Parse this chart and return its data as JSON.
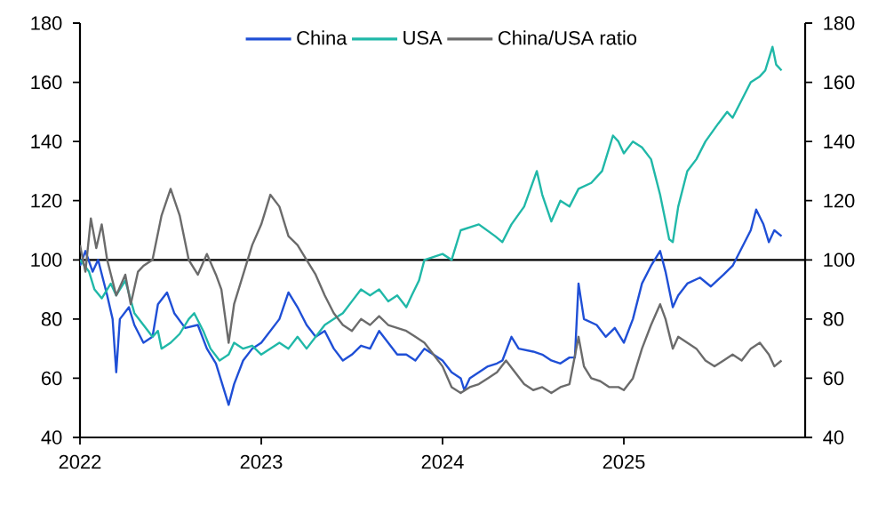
{
  "chart_data": {
    "type": "line",
    "xlim": [
      2022,
      2026
    ],
    "xticks": [
      2022,
      2023,
      2024,
      2025
    ],
    "ylim": [
      40,
      180
    ],
    "yticks": [
      40,
      60,
      80,
      100,
      120,
      140,
      160,
      180
    ],
    "y2lim": [
      40,
      180
    ],
    "y2ticks": [
      40,
      60,
      80,
      100,
      120,
      140,
      160,
      180
    ],
    "legend": "top",
    "grid": false,
    "line_style": "solid",
    "ref_lines": [
      {
        "axis": "y",
        "value": 100,
        "color": "#000000"
      }
    ],
    "series": [
      {
        "name": "China",
        "color": "#1f4fd6",
        "x": [
          2022.0,
          2022.03,
          2022.07,
          2022.1,
          2022.15,
          2022.18,
          2022.2,
          2022.22,
          2022.27,
          2022.3,
          2022.35,
          2022.4,
          2022.43,
          2022.48,
          2022.52,
          2022.58,
          2022.65,
          2022.7,
          2022.75,
          2022.8,
          2022.82,
          2022.85,
          2022.9,
          2022.95,
          2023.0,
          2023.05,
          2023.1,
          2023.15,
          2023.2,
          2023.25,
          2023.3,
          2023.35,
          2023.4,
          2023.45,
          2023.5,
          2023.55,
          2023.6,
          2023.65,
          2023.7,
          2023.75,
          2023.8,
          2023.85,
          2023.9,
          2023.95,
          2024.0,
          2024.05,
          2024.1,
          2024.12,
          2024.15,
          2024.2,
          2024.25,
          2024.3,
          2024.33,
          2024.38,
          2024.42,
          2024.5,
          2024.55,
          2024.6,
          2024.65,
          2024.7,
          2024.73,
          2024.75,
          2024.78,
          2024.85,
          2024.9,
          2024.95,
          2025.0,
          2025.05,
          2025.1,
          2025.15,
          2025.2,
          2025.23,
          2025.27,
          2025.3,
          2025.35,
          2025.42,
          2025.48,
          2025.55,
          2025.6,
          2025.65,
          2025.7,
          2025.73,
          2025.77,
          2025.8,
          2025.83,
          2025.87
        ],
        "values": [
          98,
          103,
          96,
          100,
          88,
          80,
          62,
          80,
          84,
          78,
          72,
          74,
          85,
          89,
          82,
          77,
          78,
          70,
          65,
          55,
          51,
          58,
          66,
          70,
          72,
          76,
          80,
          89,
          84,
          78,
          74,
          76,
          70,
          66,
          68,
          71,
          70,
          76,
          72,
          68,
          68,
          66,
          70,
          68,
          66,
          62,
          60,
          56,
          60,
          62,
          64,
          65,
          66,
          74,
          70,
          69,
          68,
          66,
          65,
          67,
          67,
          92,
          80,
          78,
          74,
          77,
          72,
          80,
          92,
          98,
          103,
          96,
          84,
          88,
          92,
          94,
          91,
          95,
          98,
          104,
          110,
          117,
          112,
          106,
          110,
          108
        ]
      },
      {
        "name": "USA",
        "color": "#20b8a8",
        "x": [
          2022.0,
          2022.05,
          2022.08,
          2022.12,
          2022.17,
          2022.2,
          2022.25,
          2022.3,
          2022.35,
          2022.4,
          2022.43,
          2022.45,
          2022.5,
          2022.55,
          2022.6,
          2022.63,
          2022.68,
          2022.72,
          2022.77,
          2022.82,
          2022.85,
          2022.9,
          2022.95,
          2023.0,
          2023.05,
          2023.1,
          2023.15,
          2023.2,
          2023.25,
          2023.3,
          2023.35,
          2023.4,
          2023.45,
          2023.5,
          2023.55,
          2023.6,
          2023.65,
          2023.7,
          2023.75,
          2023.8,
          2023.83,
          2023.87,
          2023.9,
          2024.0,
          2024.05,
          2024.1,
          2024.2,
          2024.29,
          2024.33,
          2024.38,
          2024.45,
          2024.52,
          2024.55,
          2024.6,
          2024.65,
          2024.7,
          2024.75,
          2024.82,
          2024.88,
          2024.94,
          2024.97,
          2025.0,
          2025.05,
          2025.1,
          2025.15,
          2025.2,
          2025.25,
          2025.27,
          2025.3,
          2025.35,
          2025.4,
          2025.45,
          2025.52,
          2025.57,
          2025.6,
          2025.65,
          2025.7,
          2025.75,
          2025.78,
          2025.82,
          2025.84,
          2025.87
        ],
        "values": [
          100,
          96,
          90,
          87,
          92,
          88,
          93,
          82,
          78,
          74,
          76,
          70,
          72,
          75,
          80,
          82,
          76,
          70,
          66,
          68,
          72,
          70,
          71,
          68,
          70,
          72,
          70,
          74,
          70,
          74,
          78,
          80,
          82,
          86,
          90,
          88,
          90,
          86,
          88,
          84,
          88,
          93,
          100,
          102,
          100,
          110,
          112,
          108,
          106,
          112,
          118,
          130,
          122,
          113,
          120,
          118,
          124,
          126,
          130,
          142,
          140,
          136,
          140,
          138,
          134,
          122,
          107,
          106,
          118,
          130,
          134,
          140,
          146,
          150,
          148,
          154,
          160,
          162,
          164,
          172,
          166,
          164
        ]
      },
      {
        "name": "China/USA ratio",
        "color": "#6b6b6b",
        "x": [
          2022.0,
          2022.03,
          2022.06,
          2022.09,
          2022.12,
          2022.15,
          2022.2,
          2022.25,
          2022.28,
          2022.32,
          2022.35,
          2022.4,
          2022.45,
          2022.5,
          2022.55,
          2022.6,
          2022.65,
          2022.7,
          2022.75,
          2022.78,
          2022.82,
          2022.85,
          2022.9,
          2022.95,
          2023.0,
          2023.05,
          2023.1,
          2023.15,
          2023.2,
          2023.25,
          2023.3,
          2023.35,
          2023.4,
          2023.45,
          2023.5,
          2023.55,
          2023.6,
          2023.65,
          2023.7,
          2023.75,
          2023.8,
          2023.85,
          2023.9,
          2023.95,
          2024.0,
          2024.05,
          2024.1,
          2024.15,
          2024.2,
          2024.25,
          2024.3,
          2024.35,
          2024.4,
          2024.45,
          2024.5,
          2024.55,
          2024.6,
          2024.65,
          2024.7,
          2024.75,
          2024.78,
          2024.82,
          2024.87,
          2024.92,
          2024.97,
          2025.0,
          2025.05,
          2025.1,
          2025.15,
          2025.2,
          2025.23,
          2025.27,
          2025.3,
          2025.35,
          2025.4,
          2025.45,
          2025.5,
          2025.55,
          2025.6,
          2025.65,
          2025.7,
          2025.75,
          2025.8,
          2025.83,
          2025.87
        ],
        "values": [
          105,
          96,
          114,
          104,
          112,
          100,
          88,
          95,
          85,
          96,
          98,
          100,
          115,
          124,
          115,
          100,
          95,
          102,
          95,
          90,
          72,
          85,
          95,
          105,
          112,
          122,
          118,
          108,
          105,
          100,
          95,
          88,
          82,
          78,
          76,
          80,
          78,
          81,
          78,
          77,
          76,
          74,
          72,
          68,
          64,
          57,
          55,
          57,
          58,
          60,
          62,
          66,
          62,
          58,
          56,
          57,
          55,
          57,
          58,
          74,
          64,
          60,
          59,
          57,
          57,
          56,
          60,
          70,
          78,
          85,
          80,
          70,
          74,
          72,
          70,
          66,
          64,
          66,
          68,
          66,
          70,
          72,
          68,
          64,
          66
        ]
      }
    ]
  }
}
